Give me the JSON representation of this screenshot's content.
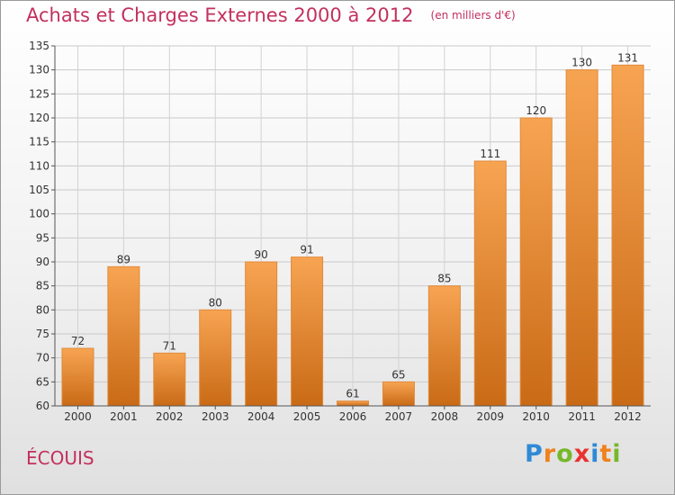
{
  "chart_data": {
    "type": "bar",
    "title": "Achats et Charges Externes 2000 à 2012",
    "subtitle": "(en milliers d'€)",
    "categories": [
      "2000",
      "2001",
      "2002",
      "2003",
      "2004",
      "2005",
      "2006",
      "2007",
      "2008",
      "2009",
      "2010",
      "2011",
      "2012"
    ],
    "values": [
      72,
      89,
      71,
      80,
      90,
      91,
      61,
      65,
      85,
      111,
      120,
      130,
      131
    ],
    "ylim": [
      60,
      135
    ],
    "yticks": [
      60,
      65,
      70,
      75,
      80,
      85,
      90,
      95,
      100,
      105,
      110,
      115,
      120,
      125,
      130,
      135
    ],
    "grid": true,
    "bar_color_top": "#f7a452",
    "bar_color_bottom": "#c96a16"
  },
  "commune": "ÉCOUIS",
  "logo": {
    "letters": [
      "P",
      "r",
      "o",
      "x",
      "i",
      "t",
      "i"
    ],
    "colors": [
      "#2f8ad6",
      "#f0821e",
      "#76b82a",
      "#e9312f",
      "#2f8ad6",
      "#f0821e",
      "#76b82a"
    ]
  }
}
